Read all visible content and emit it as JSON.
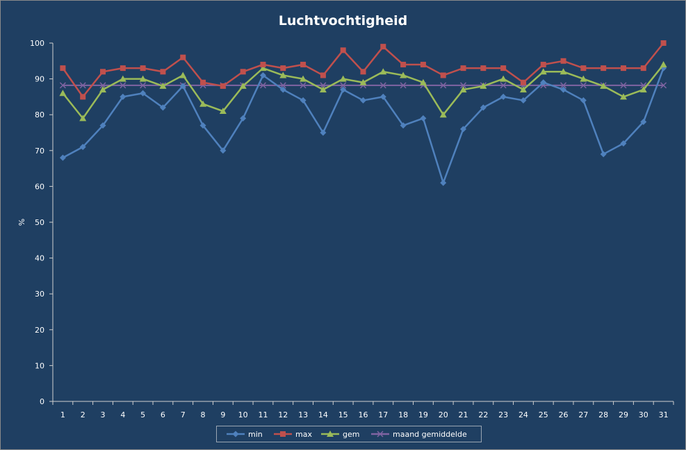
{
  "chart_data": {
    "type": "line",
    "title": "Luchtvochtigheid",
    "xlabel": "",
    "ylabel": "%",
    "ylim": [
      0,
      100
    ],
    "yticks": [
      0,
      10,
      20,
      30,
      40,
      50,
      60,
      70,
      80,
      90,
      100
    ],
    "categories": [
      "1",
      "2",
      "3",
      "4",
      "5",
      "6",
      "7",
      "8",
      "9",
      "10",
      "11",
      "12",
      "13",
      "14",
      "15",
      "16",
      "17",
      "18",
      "19",
      "20",
      "21",
      "22",
      "23",
      "24",
      "25",
      "26",
      "27",
      "28",
      "29",
      "30",
      "31"
    ],
    "grid": false,
    "legend": "bottom",
    "series": [
      {
        "name": "min",
        "color": "#4f81bd",
        "marker": "diamond",
        "values": [
          68,
          71,
          77,
          85,
          86,
          82,
          88,
          77,
          70,
          79,
          91,
          87,
          84,
          75,
          87,
          84,
          85,
          77,
          79,
          61,
          76,
          82,
          85,
          84,
          89,
          87,
          84,
          69,
          72,
          78,
          93
        ]
      },
      {
        "name": "max",
        "color": "#c0504d",
        "marker": "square",
        "values": [
          93,
          85,
          92,
          93,
          93,
          92,
          96,
          89,
          88,
          92,
          94,
          93,
          94,
          91,
          98,
          92,
          99,
          94,
          94,
          91,
          93,
          93,
          93,
          89,
          94,
          95,
          93,
          93,
          93,
          93,
          100
        ]
      },
      {
        "name": "gem",
        "color": "#9bbb59",
        "marker": "triangle",
        "values": [
          86,
          79,
          87,
          90,
          90,
          88,
          91,
          83,
          81,
          88,
          93,
          91,
          90,
          87,
          90,
          89,
          92,
          91,
          89,
          80,
          87,
          88,
          90,
          87,
          92,
          92,
          90,
          88,
          85,
          87,
          94
        ]
      },
      {
        "name": "maand gemiddelde",
        "color": "#8064a2",
        "marker": "x",
        "values": [
          88.2,
          88.2,
          88.2,
          88.2,
          88.2,
          88.2,
          88.2,
          88.2,
          88.2,
          88.2,
          88.2,
          88.2,
          88.2,
          88.2,
          88.2,
          88.2,
          88.2,
          88.2,
          88.2,
          88.2,
          88.2,
          88.2,
          88.2,
          88.2,
          88.2,
          88.2,
          88.2,
          88.2,
          88.2,
          88.2,
          88.2
        ]
      }
    ]
  }
}
